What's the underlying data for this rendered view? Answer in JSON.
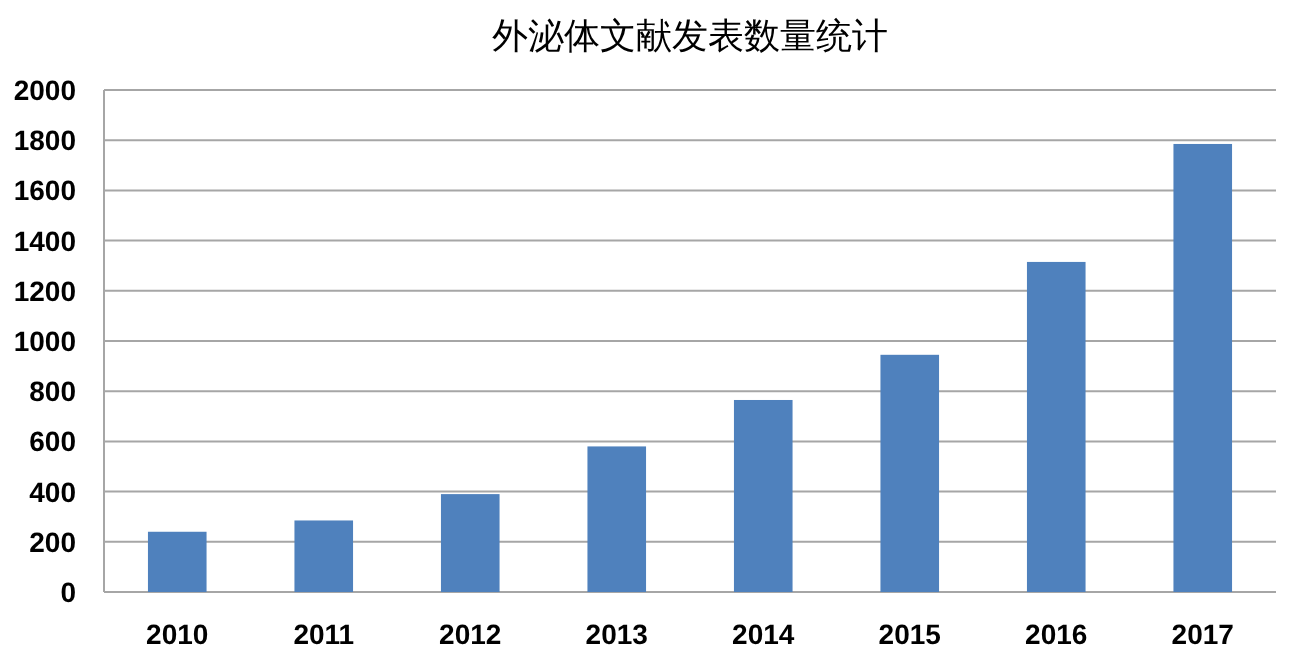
{
  "chart_data": {
    "type": "bar",
    "title": "外泌体文献发表数量统计",
    "categories": [
      "2010",
      "2011",
      "2012",
      "2013",
      "2014",
      "2015",
      "2016",
      "2017"
    ],
    "values": [
      240,
      285,
      390,
      580,
      765,
      945,
      1315,
      1785
    ],
    "color": "#4f81bd",
    "ylim": [
      0,
      2000
    ],
    "yticks": [
      0,
      200,
      400,
      600,
      800,
      1000,
      1200,
      1400,
      1600,
      1800,
      2000
    ],
    "grid": "y"
  }
}
